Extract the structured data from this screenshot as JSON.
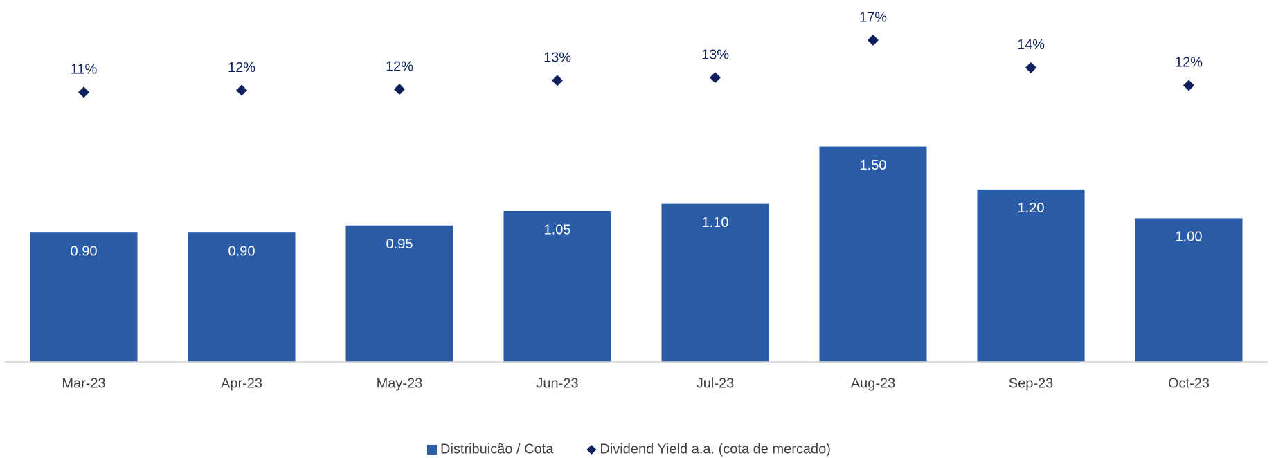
{
  "chart_data": {
    "type": "bar",
    "categories": [
      "Mar-23",
      "Apr-23",
      "May-23",
      "Jun-23",
      "Jul-23",
      "Aug-23",
      "Sep-23",
      "Oct-23"
    ],
    "series": [
      {
        "name": "Distribuicão / Cota",
        "type": "bar",
        "color": "#2a5ca8",
        "values": [
          0.9,
          0.9,
          0.95,
          1.05,
          1.1,
          1.5,
          1.2,
          1.0
        ],
        "value_labels": [
          "0.90",
          "0.90",
          "0.95",
          "1.05",
          "1.10",
          "1.50",
          "1.20",
          "1.00"
        ]
      },
      {
        "name": "Dividend Yield a.a. (cota de mercado)",
        "type": "scatter",
        "axis": "y2",
        "color": "#0d1f5c",
        "values": [
          11.4,
          11.6,
          11.7,
          12.6,
          12.9,
          16.7,
          13.9,
          12.1
        ],
        "value_labels": [
          "11%",
          "12%",
          "12%",
          "13%",
          "13%",
          "17%",
          "14%",
          "12%"
        ]
      }
    ],
    "ylim": [
      0,
      2.5
    ],
    "y2lim": [
      -16,
      20.5
    ],
    "legend": "bottom"
  }
}
